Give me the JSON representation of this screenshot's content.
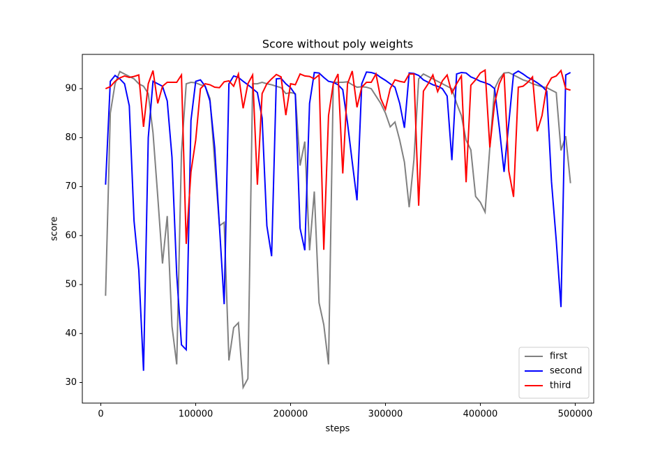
{
  "chart_data": {
    "type": "line",
    "title": "Score without poly weights",
    "xlabel": "steps",
    "ylabel": "score",
    "x": [
      5000,
      10000,
      15000,
      20000,
      25000,
      30000,
      35000,
      40000,
      45000,
      50000,
      55000,
      60000,
      65000,
      70000,
      75000,
      80000,
      85000,
      90000,
      95000,
      100000,
      105000,
      110000,
      115000,
      120000,
      125000,
      130000,
      135000,
      140000,
      145000,
      150000,
      155000,
      160000,
      165000,
      170000,
      175000,
      180000,
      185000,
      190000,
      195000,
      200000,
      205000,
      210000,
      215000,
      220000,
      225000,
      230000,
      235000,
      240000,
      245000,
      250000,
      255000,
      260000,
      265000,
      270000,
      275000,
      280000,
      285000,
      290000,
      295000,
      300000,
      305000,
      310000,
      315000,
      320000,
      325000,
      330000,
      335000,
      340000,
      345000,
      350000,
      355000,
      360000,
      365000,
      370000,
      375000,
      380000,
      385000,
      390000,
      395000,
      400000,
      405000,
      410000,
      415000,
      420000,
      425000,
      430000,
      435000,
      440000,
      445000,
      450000,
      455000,
      460000,
      465000,
      470000,
      475000,
      480000,
      485000,
      490000,
      495000
    ],
    "series": [
      {
        "name": "first",
        "color": "#808080",
        "values": [
          47.7,
          85,
          91,
          93.5,
          93,
          92.5,
          92,
          91,
          90.5,
          89,
          81,
          68,
          54.3,
          64,
          41.5,
          33.7,
          77,
          91,
          91.3,
          91.2,
          90.8,
          90.5,
          88,
          75,
          62,
          62.7,
          34.5,
          41.2,
          42.2,
          29,
          30.8,
          91,
          91,
          91.3,
          91,
          90.8,
          90.5,
          90.2,
          89,
          89.2,
          89,
          74.3,
          79.2,
          57,
          69,
          46.3,
          41.8,
          33.7,
          91.3,
          91.3,
          91.3,
          91.4,
          90.8,
          90.3,
          90.4,
          90.3,
          90,
          88.5,
          87,
          85,
          82.2,
          83.2,
          79.5,
          75,
          65.8,
          75.5,
          92,
          93,
          92.5,
          92,
          91.5,
          91,
          90.5,
          90,
          87,
          84.5,
          79.5,
          77.5,
          68,
          66.8,
          64.8,
          78,
          90,
          92,
          93.2,
          93.3,
          92.8,
          92.3,
          91.8,
          91.5,
          91,
          90.7,
          90.4,
          90.2,
          89.7,
          89.2,
          77.4,
          80.3,
          70.7
        ]
      },
      {
        "name": "second",
        "color": "#0000ff",
        "values": [
          70.4,
          91.5,
          92.7,
          92,
          91,
          86.5,
          63,
          53,
          32.4,
          80,
          91.5,
          91,
          90.5,
          87.5,
          76,
          52,
          37.7,
          36.7,
          83.5,
          91.5,
          91.8,
          90.5,
          87.5,
          78,
          62,
          46,
          91,
          92.6,
          92.3,
          91.5,
          90.8,
          90,
          89.2,
          84,
          62,
          55.8,
          92,
          92.1,
          91,
          90.2,
          88.8,
          61.5,
          57,
          87,
          93.3,
          93.2,
          92.3,
          91.5,
          91.3,
          90.8,
          89.8,
          83,
          75,
          67.2,
          91,
          93.4,
          93.3,
          93,
          92.3,
          91.7,
          91,
          90.3,
          87,
          82,
          93.2,
          93.1,
          92.7,
          91.8,
          91.3,
          90.8,
          90.5,
          90,
          88.5,
          75.4,
          93,
          93.3,
          93.2,
          92.4,
          92,
          91.5,
          91.2,
          90.8,
          90,
          82,
          73,
          83,
          93,
          93.6,
          93,
          92.3,
          91.8,
          91.2,
          90.5,
          89.5,
          71,
          59,
          45.4,
          92.8,
          93.3
        ]
      },
      {
        "name": "third",
        "color": "#ff0000",
        "values": [
          90,
          90.4,
          91.5,
          92.2,
          92.6,
          92.3,
          92.5,
          92.8,
          82.2,
          91,
          93.7,
          87,
          90.5,
          91.3,
          91.3,
          91.3,
          92.8,
          58.3,
          73,
          79.5,
          90,
          91,
          90.8,
          90.3,
          90.2,
          91.4,
          91.6,
          90.5,
          93,
          86,
          91,
          92.8,
          70.4,
          89,
          91,
          92,
          92.9,
          92.4,
          84.6,
          91,
          90.8,
          93,
          92.6,
          92.5,
          92,
          92.8,
          57.1,
          84.5,
          91,
          93,
          72.7,
          91,
          93.6,
          86.2,
          90.3,
          91.3,
          91.3,
          93,
          88,
          85.8,
          90,
          91.8,
          91.5,
          91.3,
          93,
          93,
          66.1,
          89.5,
          91,
          92.8,
          89.4,
          91.6,
          92.8,
          89.1,
          91,
          92.6,
          70.9,
          90.7,
          91.8,
          93.2,
          93.8,
          78,
          87,
          91,
          93.1,
          73.2,
          67.9,
          90.3,
          90.5,
          91.3,
          92.4,
          81.3,
          84.5,
          90.5,
          92.2,
          92.6,
          93.7,
          90,
          89.7
        ]
      }
    ],
    "xlim": [
      -19500,
      519500
    ],
    "ylim": [
      25.8,
      97.0
    ],
    "xticks": [
      0,
      100000,
      200000,
      300000,
      400000,
      500000
    ],
    "yticks": [
      30,
      40,
      50,
      60,
      70,
      80,
      90
    ],
    "legend": "lower right"
  }
}
